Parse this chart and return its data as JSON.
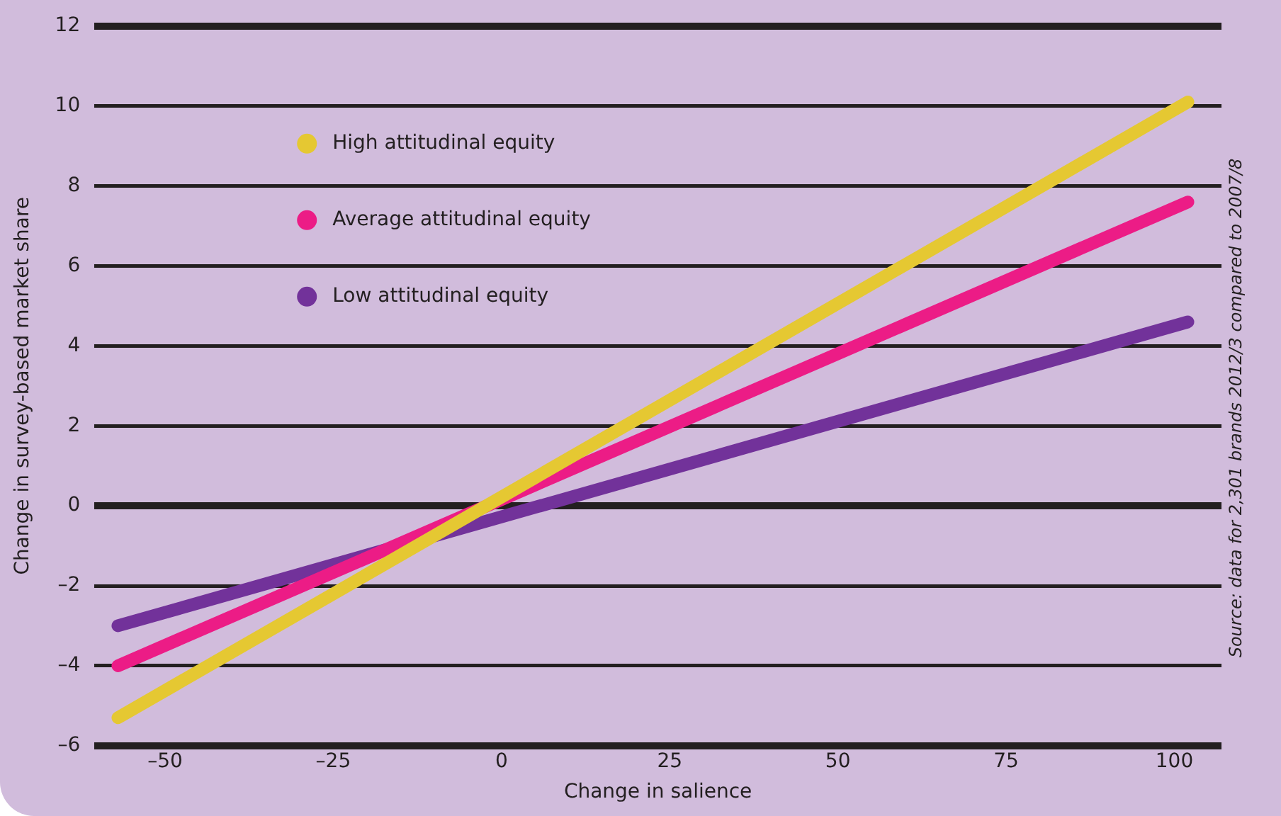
{
  "chart_data": {
    "type": "line",
    "xlabel": "Change in salience",
    "ylabel": "Change in survey-based market share",
    "x": [
      -57,
      102
    ],
    "series": [
      {
        "name": "High attitudinal equity",
        "color": "#e5c832",
        "values": [
          -5.3,
          10.1
        ]
      },
      {
        "name": "Average attitudinal equity",
        "color": "#ec1c86",
        "values": [
          -4.0,
          7.6
        ]
      },
      {
        "name": "Low attitudinal equity",
        "color": "#72329a",
        "values": [
          -3.0,
          4.6
        ]
      }
    ],
    "xlim": [
      -60.5,
      107
    ],
    "xticks": [
      {
        "value": -50,
        "label": "–50"
      },
      {
        "value": -25,
        "label": "–25"
      },
      0,
      25,
      50,
      75,
      100
    ],
    "ylim": [
      -6,
      12
    ],
    "yticks": [
      {
        "value": -6,
        "label": "–6"
      },
      {
        "value": -4,
        "label": "–4"
      },
      {
        "value": -2,
        "label": "–2"
      },
      0,
      2,
      4,
      6,
      8,
      10,
      12
    ],
    "grid": "y",
    "legend": "top left",
    "marker": "none",
    "line_style": "solid",
    "annotations": [
      "Source: data for 2,301 brands 2012/3 compared to 2007/8"
    ]
  }
}
